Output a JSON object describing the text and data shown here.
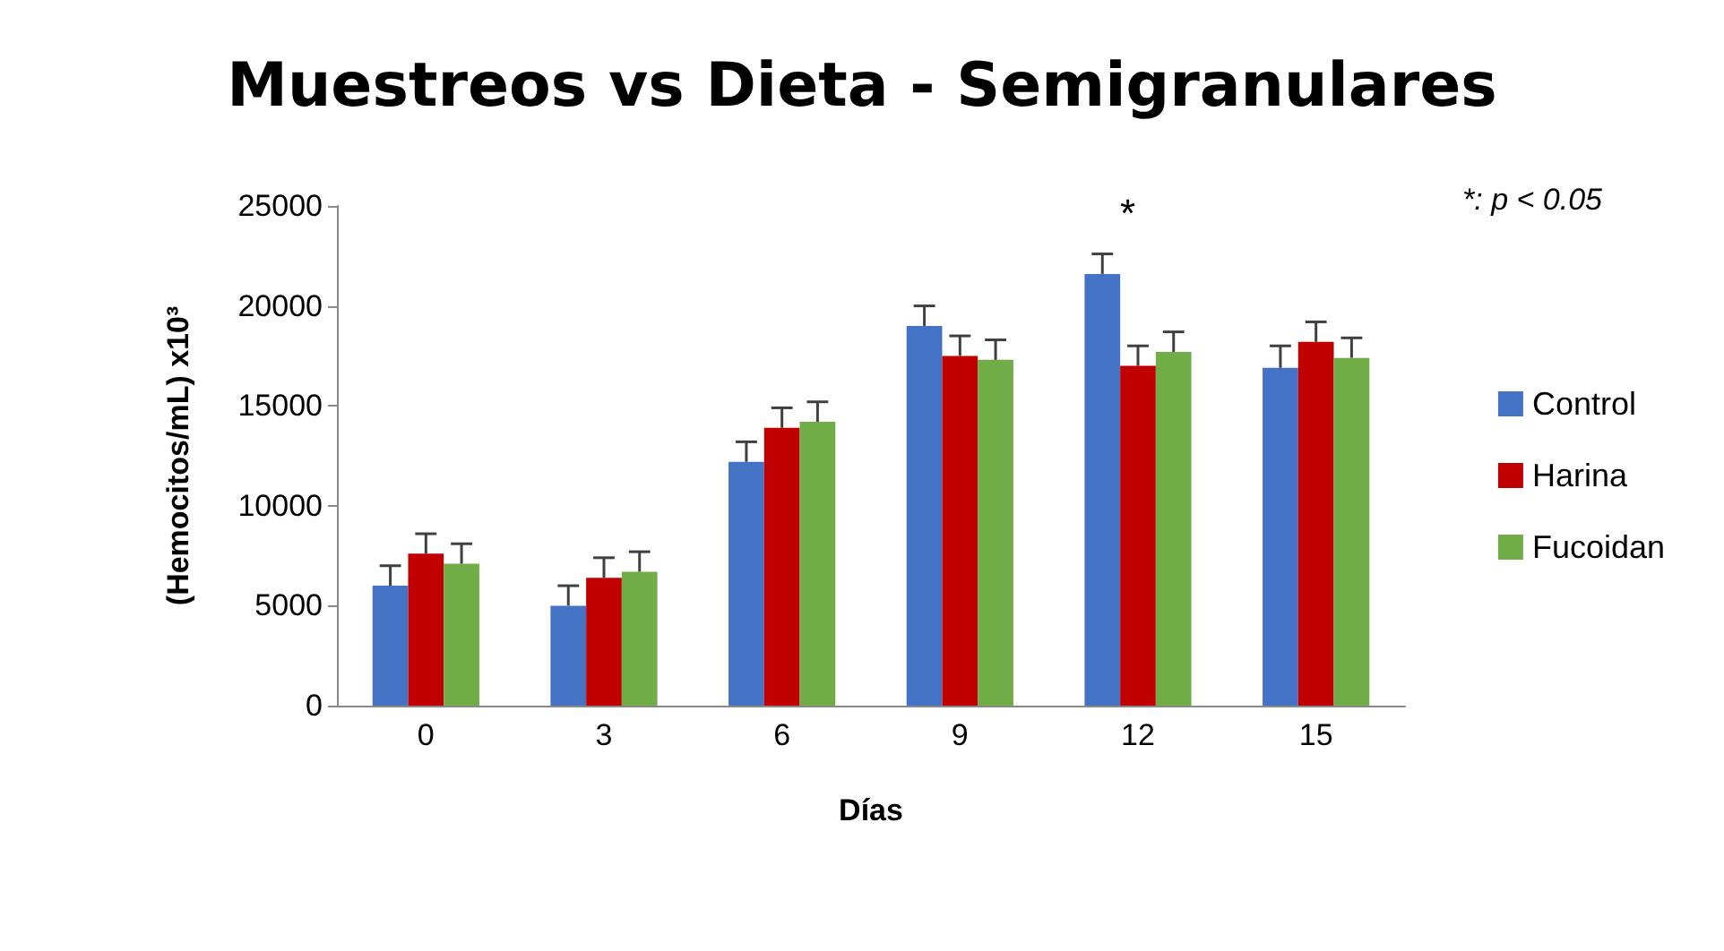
{
  "chart_data": {
    "type": "bar",
    "title": "Muestreos vs Dieta - Semigranulares",
    "xlabel": "Días",
    "ylabel": "(Hemocitos/mL) x10³",
    "categories": [
      "0",
      "3",
      "6",
      "9",
      "12",
      "15"
    ],
    "series": [
      {
        "name": "Control",
        "color": "#4472c4",
        "values": [
          6000,
          5000,
          12200,
          19000,
          21600,
          16900
        ],
        "errors": [
          1000,
          1000,
          1000,
          1000,
          1000,
          1100
        ]
      },
      {
        "name": "Harina",
        "color": "#c00000",
        "values": [
          7600,
          6400,
          13900,
          17500,
          17000,
          18200
        ],
        "errors": [
          1000,
          1000,
          1000,
          1000,
          1000,
          1000
        ]
      },
      {
        "name": "Fucoidan",
        "color": "#70ad47",
        "values": [
          7100,
          6700,
          14200,
          17300,
          17700,
          17400
        ],
        "errors": [
          1000,
          1000,
          1000,
          1000,
          1000,
          1000
        ]
      }
    ],
    "ylim": [
      0,
      25000
    ],
    "yticks": [
      0,
      5000,
      10000,
      15000,
      20000,
      25000
    ],
    "grid": false,
    "legend": "right",
    "annotations": [
      "*",
      "*: p < 0.05"
    ]
  }
}
